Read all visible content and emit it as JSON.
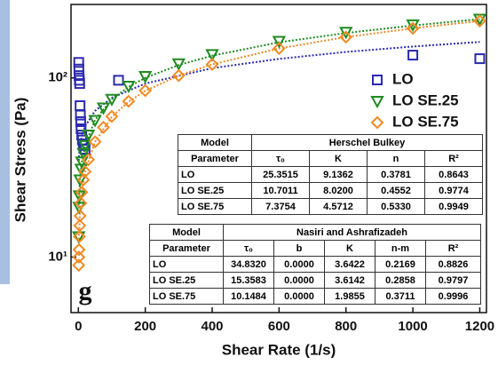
{
  "chart_data": {
    "type": "scatter",
    "log_y": true,
    "legend": "right",
    "xlabel": "Shear Rate (1/s)",
    "ylabel": "Shear Stress (Pa)",
    "annotation": "g",
    "xlim": [
      -22,
      1220
    ],
    "ylim": [
      4.9,
      257
    ],
    "xticks": [
      0,
      200,
      400,
      600,
      800,
      1000,
      1200
    ],
    "yticks": [
      {
        "value": 10,
        "label": "10¹"
      },
      {
        "value": 100,
        "label": "10²"
      }
    ],
    "series": [
      {
        "name": "LO",
        "color": "#2a2ab0",
        "marker": "square",
        "x": [
          1,
          1.5,
          2,
          3,
          4,
          5,
          6,
          7,
          8,
          10,
          12,
          15,
          20,
          120,
          1000,
          1200
        ],
        "values": [
          122,
          112,
          103,
          97,
          93,
          70,
          62,
          57,
          52,
          48,
          45,
          42,
          40,
          97,
          134,
          128
        ]
      },
      {
        "name": "LO SE.25",
        "color": "#1f8a1f",
        "marker": "triangle",
        "x": [
          1,
          2,
          3,
          5,
          8,
          10,
          15,
          20,
          30,
          50,
          75,
          100,
          150,
          200,
          300,
          400,
          600,
          800,
          1000,
          1200
        ],
        "values": [
          13,
          19,
          22,
          27,
          31,
          34,
          38,
          42,
          48,
          58,
          68,
          76,
          90,
          102,
          120,
          135,
          160,
          180,
          198,
          213
        ]
      },
      {
        "name": "LO SE.75",
        "color": "#f08a24",
        "marker": "diamond",
        "x": [
          1,
          1.5,
          2,
          3,
          4,
          5,
          7,
          10,
          15,
          20,
          30,
          50,
          75,
          100,
          150,
          200,
          300,
          400,
          600,
          800,
          1000,
          1200
        ],
        "values": [
          9,
          10,
          11,
          13,
          15,
          17,
          20,
          23,
          27,
          30,
          35,
          44,
          53,
          61,
          74,
          85,
          103,
          119,
          146,
          169,
          189,
          208
        ]
      }
    ],
    "fits": [
      {
        "color": "#2a2ab0",
        "x": [
          1,
          5,
          10,
          20,
          50,
          100,
          200,
          400,
          600,
          800,
          1000,
          1200
        ],
        "values": [
          34.5,
          42.2,
          47.2,
          53.7,
          65.5,
          77.4,
          93,
          113.3,
          127.7,
          139.6,
          149.6,
          158.7
        ]
      },
      {
        "color": "#1f8a1f",
        "x": [
          1,
          5,
          10,
          20,
          50,
          100,
          150,
          200,
          300,
          400,
          600,
          800,
          1000,
          1200
        ],
        "values": [
          18.7,
          27.4,
          33.6,
          42,
          58.3,
          76,
          89,
          100,
          118,
          133,
          158,
          178,
          196,
          213
        ]
      },
      {
        "color": "#f08a24",
        "x": [
          1,
          5,
          10,
          20,
          50,
          100,
          150,
          200,
          300,
          400,
          600,
          800,
          1000,
          1200
        ],
        "values": [
          12,
          18.2,
          23,
          30,
          44,
          60.7,
          73.6,
          84.6,
          103,
          119,
          146,
          169,
          189,
          208
        ]
      }
    ]
  },
  "tables": [
    {
      "header": [
        "Model",
        "Herschel Bulkey"
      ],
      "rows": [
        [
          "Parameter",
          "τ₀",
          "K",
          "n",
          "R²"
        ],
        [
          "LO",
          "25.3515",
          "9.1362",
          "0.3781",
          "0.8643"
        ],
        [
          "LO SE.25",
          "10.7011",
          "8.0200",
          "0.4552",
          "0.9774"
        ],
        [
          "LO SE.75",
          "7.3754",
          "4.5712",
          "0.5330",
          "0.9949"
        ]
      ]
    },
    {
      "header": [
        "Model",
        "Nasiri and Ashrafizadeh"
      ],
      "rows": [
        [
          "Parameter",
          "τ₀",
          "b",
          "K",
          "n-m",
          "R²"
        ],
        [
          "LO",
          "34.8320",
          "0.0000",
          "3.6422",
          "0.2169",
          "0.8826"
        ],
        [
          "LO SE.25",
          "15.3583",
          "0.0000",
          "3.6142",
          "0.2858",
          "0.9797"
        ],
        [
          "LO SE.75",
          "10.1484",
          "0.0000",
          "1.9855",
          "0.3711",
          "0.9996"
        ]
      ]
    }
  ]
}
